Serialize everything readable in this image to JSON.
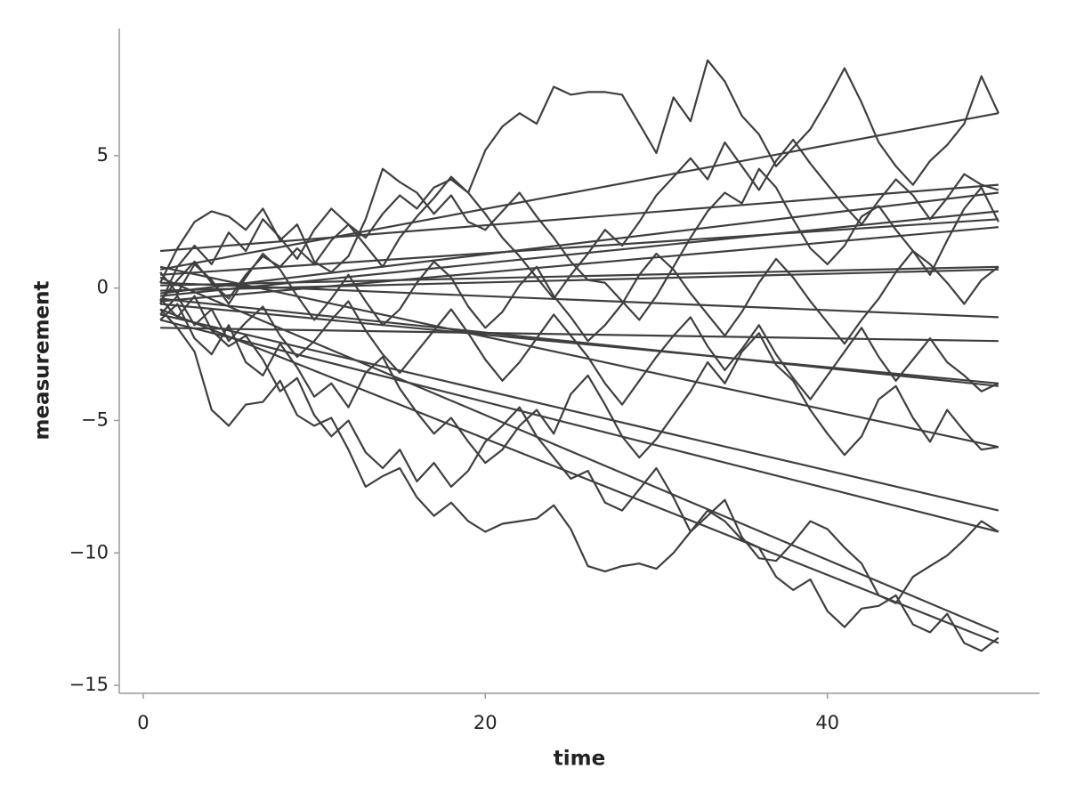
{
  "chart_data": {
    "type": "line",
    "xlabel": "time",
    "ylabel": "measurement",
    "color": "#3f3f3f",
    "xlim": [
      -1.4,
      52.4
    ],
    "ylim": [
      -15.3,
      9.8
    ],
    "xticks": [
      0,
      20,
      40
    ],
    "yticks": [
      {
        "value": -15,
        "label": "−15"
      },
      {
        "value": -10,
        "label": "−10"
      },
      {
        "value": -5,
        "label": "−5"
      },
      0,
      5
    ],
    "x": [
      1,
      2,
      3,
      4,
      5,
      6,
      7,
      8,
      9,
      10,
      11,
      12,
      13,
      14,
      15,
      16,
      17,
      18,
      19,
      20,
      21,
      22,
      23,
      24,
      25,
      26,
      27,
      28,
      29,
      30,
      31,
      32,
      33,
      34,
      35,
      36,
      37,
      38,
      39,
      40,
      41,
      42,
      43,
      44,
      45,
      46,
      47,
      48,
      49,
      50
    ],
    "series": [
      {
        "values": [
          -0.5,
          0.3,
          1.0,
          0.2,
          -0.4,
          0.5,
          1.2,
          0.8,
          1.5,
          0.9,
          1.8,
          2.4,
          1.9,
          2.8,
          3.5,
          3.0,
          3.8,
          4.1,
          3.6,
          5.2,
          6.1,
          6.6,
          6.2,
          7.6,
          7.3,
          7.4,
          7.4,
          7.3,
          6.2,
          5.1,
          7.2,
          6.3,
          8.6,
          7.8,
          6.5,
          5.8,
          4.6,
          5.3,
          6.0,
          7.1,
          8.3,
          7.0,
          5.5,
          4.6,
          3.9,
          4.8,
          5.4,
          6.2,
          8.0,
          6.6
        ]
      },
      {
        "values": [
          -0.8,
          -1.5,
          -2.4,
          -4.6,
          -5.2,
          -4.4,
          -4.3,
          -3.5,
          -4.8,
          -5.2,
          -4.9,
          -6.1,
          -7.5,
          -7.1,
          -6.8,
          -7.9,
          -8.6,
          -8.1,
          -8.8,
          -9.2,
          -8.9,
          -8.8,
          -8.7,
          -8.2,
          -9.1,
          -10.5,
          -10.7,
          -10.5,
          -10.4,
          -10.6,
          -10.0,
          -9.2,
          -8.4,
          -8.8,
          -9.5,
          -9.8,
          -10.9,
          -11.4,
          -11.0,
          -12.2,
          -12.8,
          -12.1,
          -12.0,
          -11.6,
          -12.7,
          -13.0,
          -12.3,
          -13.4,
          -13.7,
          -13.2
        ]
      },
      {
        "values": [
          0.2,
          1.5,
          2.5,
          2.9,
          2.7,
          2.2,
          3.0,
          1.8,
          2.4,
          1.0,
          0.6,
          1.2,
          2.6,
          4.5,
          4.0,
          3.6,
          2.8,
          3.5,
          2.5,
          2.2,
          2.9,
          3.6,
          2.7,
          1.9,
          1.0,
          0.3,
          0.2,
          -0.5,
          -1.2,
          -0.3,
          0.8,
          1.9,
          2.9,
          3.6,
          3.2,
          4.5,
          3.8,
          2.6,
          1.5,
          0.9,
          1.6,
          2.7,
          3.1,
          2.2,
          1.4,
          0.5,
          1.8,
          3.0,
          3.8,
          2.5
        ]
      },
      {
        "values": [
          -1.2,
          -0.6,
          -1.9,
          -2.5,
          -1.4,
          -2.8,
          -3.3,
          -2.1,
          -3.0,
          -4.1,
          -3.6,
          -4.5,
          -3.2,
          -2.6,
          -3.8,
          -4.7,
          -5.5,
          -4.9,
          -5.8,
          -6.6,
          -6.1,
          -5.2,
          -4.6,
          -5.5,
          -4.0,
          -3.3,
          -4.4,
          -5.6,
          -6.4,
          -5.7,
          -4.8,
          -3.9,
          -2.8,
          -3.6,
          -2.4,
          -1.7,
          -2.9,
          -3.5,
          -4.6,
          -5.5,
          -6.3,
          -5.6,
          -4.2,
          -3.7,
          -4.9,
          -5.8,
          -4.6,
          -5.4,
          -6.1,
          -6.0
        ]
      },
      {
        "values": [
          -0.4,
          -1.1,
          -0.3,
          -1.6,
          -2.2,
          -1.8,
          -2.7,
          -3.9,
          -3.4,
          -4.8,
          -5.6,
          -5.0,
          -6.2,
          -6.8,
          -6.1,
          -7.3,
          -6.6,
          -7.5,
          -6.9,
          -5.8,
          -5.2,
          -4.5,
          -5.6,
          -6.4,
          -7.2,
          -6.9,
          -8.1,
          -8.4,
          -7.6,
          -6.8,
          -7.9,
          -9.2,
          -8.6,
          -8.0,
          -9.4,
          -10.2,
          -10.3,
          -9.6,
          -8.8,
          -9.1,
          -9.8,
          -10.4,
          -11.6,
          -11.9,
          -10.9,
          -10.5,
          -10.1,
          -9.5,
          -8.8,
          -9.2
        ]
      },
      {
        "values": [
          0.6,
          -0.2,
          0.9,
          0.3,
          -0.6,
          0.4,
          1.3,
          0.7,
          -0.3,
          -1.2,
          -0.4,
          0.5,
          -0.5,
          -1.4,
          -0.8,
          0.2,
          1.0,
          0.4,
          -0.7,
          -1.5,
          -0.9,
          0.1,
          0.8,
          -0.3,
          -1.1,
          -2.0,
          -1.4,
          -0.6,
          0.5,
          1.3,
          0.7,
          -0.2,
          -1.0,
          -1.8,
          -0.9,
          0.2,
          1.1,
          0.4,
          -0.5,
          -1.3,
          -2.1,
          -1.2,
          -0.4,
          0.6,
          1.4,
          0.9,
          0.2,
          -0.6,
          0.3,
          0.8
        ]
      },
      {
        "values": [
          -0.6,
          0.8,
          1.6,
          0.9,
          2.1,
          1.4,
          2.6,
          1.9,
          1.1,
          2.2,
          3.0,
          2.4,
          1.6,
          0.8,
          1.9,
          2.7,
          3.4,
          4.2,
          3.6,
          2.8,
          1.9,
          1.2,
          0.4,
          -0.4,
          0.5,
          1.3,
          2.2,
          1.6,
          2.5,
          3.5,
          4.2,
          4.9,
          4.1,
          5.5,
          4.6,
          3.7,
          4.8,
          5.6,
          4.7,
          3.9,
          3.1,
          2.4,
          3.3,
          4.1,
          3.5,
          2.6,
          3.4,
          4.3,
          3.9,
          3.7
        ]
      },
      {
        "values": [
          -1.0,
          -0.3,
          -1.4,
          -0.8,
          -2.0,
          -1.3,
          -0.7,
          -1.8,
          -2.6,
          -2.0,
          -1.2,
          -0.5,
          -1.6,
          -2.5,
          -3.2,
          -2.4,
          -1.6,
          -0.8,
          -1.7,
          -2.7,
          -3.5,
          -2.8,
          -1.9,
          -1.0,
          -1.8,
          -2.6,
          -3.6,
          -4.4,
          -3.5,
          -2.6,
          -1.8,
          -1.1,
          -2.2,
          -3.1,
          -2.3,
          -1.4,
          -2.5,
          -3.4,
          -4.2,
          -3.3,
          -2.4,
          -1.5,
          -2.6,
          -3.5,
          -2.7,
          -1.9,
          -2.8,
          -3.3,
          -3.9,
          -3.6
        ]
      },
      {
        "x": [
          1,
          50
        ],
        "values": [
          0.7,
          6.6
        ]
      },
      {
        "x": [
          1,
          50
        ],
        "values": [
          -0.8,
          -13.4
        ]
      },
      {
        "x": [
          1,
          50
        ],
        "values": [
          1.4,
          3.9
        ]
      },
      {
        "x": [
          1,
          50
        ],
        "values": [
          -0.3,
          2.9
        ]
      },
      {
        "x": [
          1,
          50
        ],
        "values": [
          0.4,
          -13.0
        ]
      },
      {
        "x": [
          1,
          50
        ],
        "values": [
          -0.5,
          2.3
        ]
      },
      {
        "x": [
          1,
          50
        ],
        "values": [
          0.1,
          0.8
        ]
      },
      {
        "x": [
          1,
          50
        ],
        "values": [
          -1.5,
          -2.0
        ]
      },
      {
        "x": [
          1,
          50
        ],
        "values": [
          0.8,
          -6.0
        ]
      },
      {
        "x": [
          1,
          50
        ],
        "values": [
          -1.0,
          -8.4
        ]
      },
      {
        "x": [
          1,
          50
        ],
        "values": [
          -0.2,
          3.6
        ]
      },
      {
        "x": [
          1,
          50
        ],
        "values": [
          -0.6,
          -3.6
        ]
      },
      {
        "x": [
          1,
          50
        ],
        "values": [
          0.2,
          -1.1
        ]
      },
      {
        "x": [
          1,
          50
        ],
        "values": [
          -1.2,
          -9.2
        ]
      },
      {
        "x": [
          1,
          50
        ],
        "values": [
          0.5,
          2.6
        ]
      },
      {
        "x": [
          1,
          50
        ],
        "values": [
          -0.1,
          0.7
        ]
      },
      {
        "x": [
          1,
          50
        ],
        "values": [
          -0.4,
          -3.7
        ]
      }
    ]
  }
}
